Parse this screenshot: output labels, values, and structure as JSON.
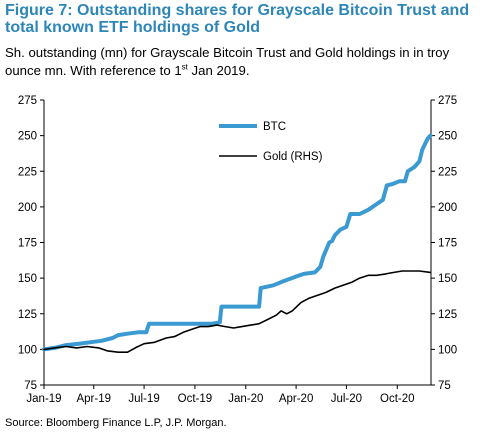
{
  "figure": {
    "title": "Figure 7: Outstanding shares for Grayscale Bitcoin Trust and total known ETF holdings of Gold",
    "subtitle_main": "Sh. outstanding (mn) for Grayscale Bitcoin Trust and Gold holdings in in troy ounce mn. With reference to 1",
    "subtitle_sup": "st",
    "subtitle_end": " Jan 2019.",
    "source": "Source: Bloomberg Finance L.P, J.P. Morgan."
  },
  "chart_data": {
    "type": "line",
    "x_tick_labels": [
      "Jan-19",
      "Apr-19",
      "Jul-19",
      "Oct-19",
      "Jan-20",
      "Apr-20",
      "Jul-20",
      "Oct-20"
    ],
    "x_tick_dates": [
      "2019-01-01",
      "2019-04-01",
      "2019-07-01",
      "2019-10-01",
      "2020-01-01",
      "2020-04-01",
      "2020-07-01",
      "2020-10-01"
    ],
    "xlim": [
      "2019-01-01",
      "2020-12-01"
    ],
    "ylim_left": [
      75,
      275
    ],
    "ylim_right": [
      75,
      275
    ],
    "y_ticks": [
      75,
      100,
      125,
      150,
      175,
      200,
      225,
      250,
      275
    ],
    "legend_position": "top-center",
    "grid": false,
    "series": [
      {
        "name": "BTC",
        "color": "#3b9ad1",
        "axis": "left",
        "points": [
          [
            "2019-01-01",
            100
          ],
          [
            "2019-01-20",
            101
          ],
          [
            "2019-02-10",
            103
          ],
          [
            "2019-03-05",
            104
          ],
          [
            "2019-03-25",
            105
          ],
          [
            "2019-04-15",
            106
          ],
          [
            "2019-05-05",
            108
          ],
          [
            "2019-05-15",
            110
          ],
          [
            "2019-06-01",
            111
          ],
          [
            "2019-06-20",
            112
          ],
          [
            "2019-07-05",
            112
          ],
          [
            "2019-07-10",
            118
          ],
          [
            "2019-08-01",
            118
          ],
          [
            "2019-09-01",
            118
          ],
          [
            "2019-10-01",
            118
          ],
          [
            "2019-11-01",
            118
          ],
          [
            "2019-11-15",
            119
          ],
          [
            "2019-11-18",
            130
          ],
          [
            "2019-12-15",
            130
          ],
          [
            "2020-01-01",
            130
          ],
          [
            "2020-01-25",
            130
          ],
          [
            "2020-01-28",
            143
          ],
          [
            "2020-02-20",
            145
          ],
          [
            "2020-03-10",
            148
          ],
          [
            "2020-03-31",
            151
          ],
          [
            "2020-04-15",
            153
          ],
          [
            "2020-05-05",
            154
          ],
          [
            "2020-05-15",
            158
          ],
          [
            "2020-05-20",
            165
          ],
          [
            "2020-05-31",
            175
          ],
          [
            "2020-06-05",
            176
          ],
          [
            "2020-06-10",
            180
          ],
          [
            "2020-06-20",
            184
          ],
          [
            "2020-07-01",
            186
          ],
          [
            "2020-07-08",
            195
          ],
          [
            "2020-07-25",
            195
          ],
          [
            "2020-08-10",
            198
          ],
          [
            "2020-08-25",
            202
          ],
          [
            "2020-09-05",
            205
          ],
          [
            "2020-09-12",
            215
          ],
          [
            "2020-09-22",
            216
          ],
          [
            "2020-10-05",
            218
          ],
          [
            "2020-10-15",
            218
          ],
          [
            "2020-10-20",
            225
          ],
          [
            "2020-11-01",
            228
          ],
          [
            "2020-11-10",
            232
          ],
          [
            "2020-11-15",
            240
          ],
          [
            "2020-11-25",
            248
          ],
          [
            "2020-11-30",
            250
          ]
        ]
      },
      {
        "name": "Gold (RHS)",
        "color": "#000000",
        "axis": "right",
        "points": [
          [
            "2019-01-01",
            100
          ],
          [
            "2019-01-20",
            101
          ],
          [
            "2019-02-10",
            102
          ],
          [
            "2019-03-01",
            101
          ],
          [
            "2019-03-20",
            102
          ],
          [
            "2019-04-10",
            101
          ],
          [
            "2019-04-25",
            99
          ],
          [
            "2019-05-15",
            98
          ],
          [
            "2019-06-01",
            98
          ],
          [
            "2019-06-15",
            101
          ],
          [
            "2019-07-01",
            104
          ],
          [
            "2019-07-20",
            105
          ],
          [
            "2019-08-10",
            108
          ],
          [
            "2019-08-25",
            109
          ],
          [
            "2019-09-10",
            112
          ],
          [
            "2019-09-25",
            114
          ],
          [
            "2019-10-10",
            116
          ],
          [
            "2019-10-25",
            116
          ],
          [
            "2019-11-10",
            117
          ],
          [
            "2019-11-25",
            116
          ],
          [
            "2019-12-10",
            115
          ],
          [
            "2019-12-25",
            116
          ],
          [
            "2020-01-10",
            117
          ],
          [
            "2020-01-25",
            118
          ],
          [
            "2020-02-10",
            121
          ],
          [
            "2020-02-25",
            124
          ],
          [
            "2020-03-05",
            127
          ],
          [
            "2020-03-15",
            125
          ],
          [
            "2020-03-25",
            127
          ],
          [
            "2020-04-10",
            133
          ],
          [
            "2020-04-25",
            136
          ],
          [
            "2020-05-10",
            138
          ],
          [
            "2020-05-25",
            140
          ],
          [
            "2020-06-10",
            143
          ],
          [
            "2020-06-25",
            145
          ],
          [
            "2020-07-10",
            147
          ],
          [
            "2020-07-25",
            150
          ],
          [
            "2020-08-10",
            152
          ],
          [
            "2020-08-25",
            152
          ],
          [
            "2020-09-10",
            153
          ],
          [
            "2020-09-25",
            154
          ],
          [
            "2020-10-10",
            155
          ],
          [
            "2020-10-25",
            155
          ],
          [
            "2020-11-10",
            155
          ],
          [
            "2020-11-30",
            154
          ]
        ]
      }
    ]
  }
}
